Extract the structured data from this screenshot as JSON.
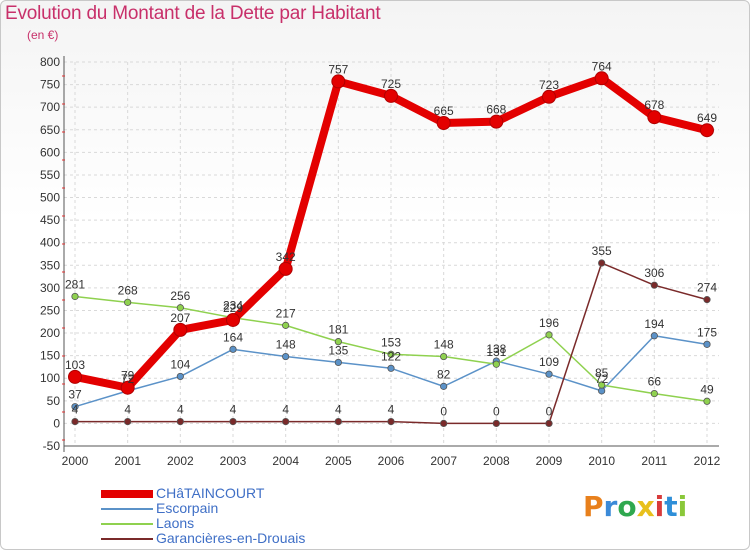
{
  "header": {
    "title": "Evolution du Montant de la Dette par Habitant",
    "unit": "(en €)"
  },
  "logo": {
    "text": "Proxiti",
    "colors": [
      "#e8801c",
      "#3b8ad8",
      "#2fa84f",
      "#e8c01c",
      "#d83b3b",
      "#2f8fd8",
      "#8ac83a"
    ]
  },
  "colors": {
    "title": "#c8306a",
    "tick_axis_marker": "#e03030"
  },
  "chart_data": {
    "type": "line",
    "title": "Evolution du Montant de la Dette par Habitant",
    "ylabel": "(en €)",
    "categories": [
      "2000",
      "2001",
      "2002",
      "2003",
      "2004",
      "2005",
      "2006",
      "2007",
      "2008",
      "2009",
      "2010",
      "2011",
      "2012"
    ],
    "ylim": [
      -50,
      800
    ],
    "yticks": [
      -50,
      0,
      50,
      100,
      150,
      200,
      250,
      300,
      350,
      400,
      450,
      500,
      550,
      600,
      650,
      700,
      750,
      800
    ],
    "grid": true,
    "legend_position": "bottom-left",
    "series": [
      {
        "name": "CHâTAINCOURT",
        "color": "#e30000",
        "width": 8,
        "values": [
          103,
          79,
          207,
          229,
          342,
          757,
          725,
          665,
          668,
          723,
          764,
          678,
          649
        ]
      },
      {
        "name": "Escorpain",
        "color": "#5b92c8",
        "width": 1.5,
        "values": [
          37,
          72,
          104,
          164,
          148,
          135,
          122,
          82,
          138,
          109,
          72,
          194,
          175
        ]
      },
      {
        "name": "Laons",
        "color": "#8fd14f",
        "width": 1.5,
        "values": [
          281,
          268,
          256,
          234,
          217,
          181,
          153,
          148,
          131,
          196,
          85,
          66,
          49
        ]
      },
      {
        "name": "Garancières-en-Drouais",
        "color": "#7a2a2a",
        "width": 1.5,
        "values": [
          4,
          4,
          4,
          4,
          4,
          4,
          4,
          0,
          0,
          0,
          355,
          306,
          274
        ]
      }
    ]
  }
}
